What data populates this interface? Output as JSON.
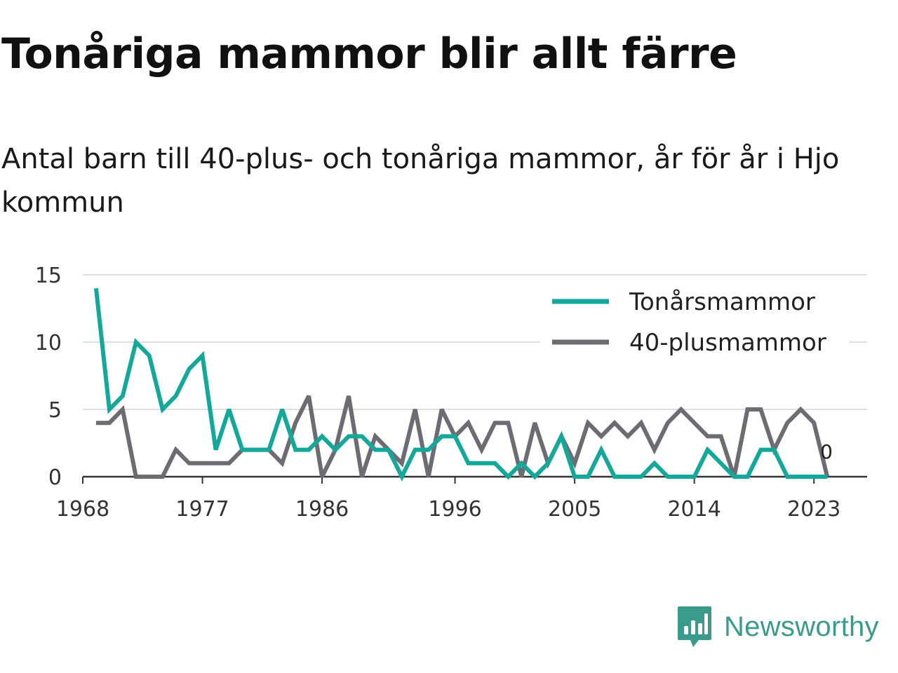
{
  "header": {
    "title": "Tonåriga mammor blir allt färre",
    "subtitle": "Antal barn till 40-plus- och tonåriga mammor, år för år i Hjo kommun"
  },
  "brand": {
    "name": "Newsworthy",
    "icon": "newsworthy-logo-icon",
    "color": "#3a9a8c"
  },
  "chart_data": {
    "type": "line",
    "title": "Tonåriga mammor blir allt färre",
    "subtitle": "Antal barn till 40-plus- och tonåriga mammor, år för år i Hjo kommun",
    "xlabel": "",
    "ylabel": "",
    "x": [
      1969,
      1970,
      1971,
      1972,
      1973,
      1974,
      1975,
      1976,
      1977,
      1978,
      1979,
      1980,
      1981,
      1982,
      1983,
      1984,
      1985,
      1986,
      1987,
      1988,
      1989,
      1990,
      1991,
      1992,
      1993,
      1994,
      1995,
      1996,
      1997,
      1998,
      1999,
      2000,
      2001,
      2002,
      2003,
      2004,
      2005,
      2006,
      2007,
      2008,
      2009,
      2010,
      2011,
      2012,
      2013,
      2014,
      2015,
      2016,
      2017,
      2018,
      2019,
      2020,
      2021,
      2022,
      2023,
      2024
    ],
    "series": [
      {
        "name": "Tonårsmammor",
        "color": "#13a89a",
        "values": [
          14,
          5,
          6,
          10,
          9,
          5,
          6,
          8,
          9,
          2,
          5,
          2,
          2,
          2,
          5,
          2,
          2,
          3,
          2,
          3,
          3,
          2,
          2,
          0,
          2,
          2,
          3,
          3,
          1,
          1,
          1,
          0,
          1,
          0,
          1,
          3,
          0,
          0,
          2,
          0,
          0,
          0,
          1,
          0,
          0,
          0,
          2,
          1,
          0,
          0,
          2,
          2,
          0,
          0,
          0,
          0
        ]
      },
      {
        "name": "40-plusmammor",
        "color": "#6d6c73",
        "values": [
          4,
          4,
          5,
          0,
          0,
          0,
          2,
          1,
          1,
          1,
          1,
          2,
          2,
          2,
          1,
          4,
          6,
          0,
          2,
          6,
          0,
          3,
          2,
          1,
          5,
          0,
          5,
          3,
          4,
          2,
          4,
          4,
          0,
          4,
          1,
          3,
          1,
          4,
          3,
          4,
          3,
          4,
          2,
          4,
          5,
          4,
          3,
          3,
          0,
          5,
          5,
          2,
          4,
          5,
          4,
          0
        ]
      }
    ],
    "xticks": [
      1968,
      1977,
      1986,
      1996,
      2005,
      2014,
      2023
    ],
    "xtick_labels": [
      "1968",
      "1977",
      "1986",
      "1996",
      "2005",
      "2014",
      "2023"
    ],
    "yticks": [
      0,
      5,
      10,
      15
    ],
    "ytick_labels": [
      "0",
      "5",
      "10",
      "15"
    ],
    "xlim": [
      1968,
      2027
    ],
    "ylim": [
      0,
      15
    ],
    "grid": true,
    "legend": "top-right",
    "end_label": "0"
  }
}
